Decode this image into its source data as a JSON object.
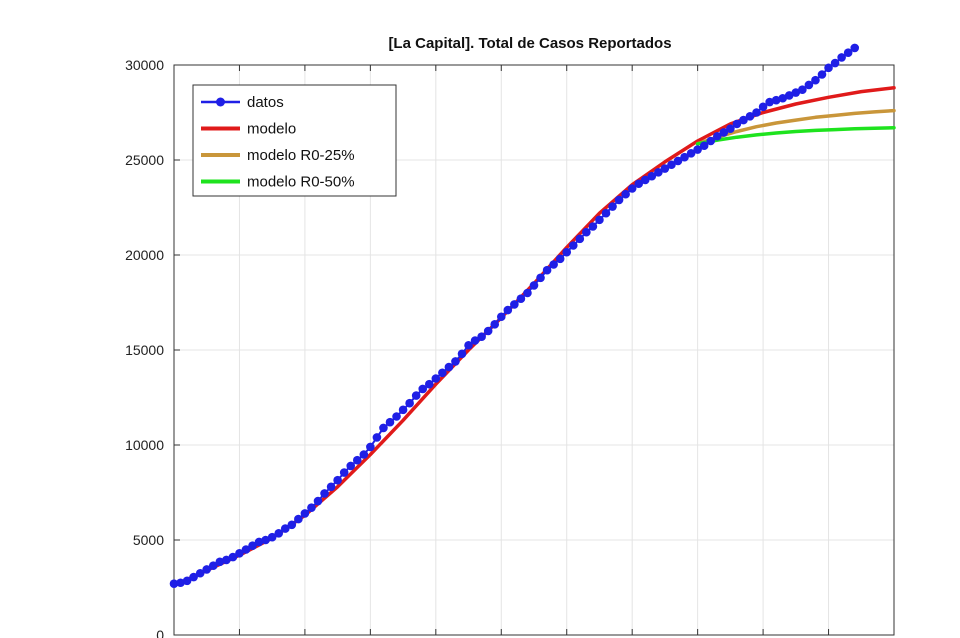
{
  "chart_data": {
    "type": "line",
    "title": "[La Capital]. Total de Casos Reportados",
    "xlabel": "",
    "ylabel": "",
    "xlim": [
      0,
      110
    ],
    "ylim": [
      0,
      30000
    ],
    "yticks": [
      0,
      5000,
      10000,
      15000,
      20000,
      25000,
      30000
    ],
    "ytick_labels": [
      "0",
      "5000",
      "10000",
      "15000",
      "20000",
      "25000",
      "30000"
    ],
    "xtick_positions": [
      10,
      20,
      30,
      40,
      50,
      60,
      70,
      80,
      90,
      100,
      110
    ],
    "grid": true,
    "legend_position": "top-left",
    "colors": {
      "datos": "#1f1fe6",
      "modelo": "#e01a1a",
      "modelo_r0_25": "#c9963a",
      "modelo_r0_50": "#1ee31e"
    },
    "series": [
      {
        "name": "datos",
        "key": "datos",
        "style": "line-marker",
        "x": [
          0,
          1,
          2,
          3,
          4,
          5,
          6,
          7,
          8,
          9,
          10,
          11,
          12,
          13,
          14,
          15,
          16,
          17,
          18,
          19,
          20,
          21,
          22,
          23,
          24,
          25,
          26,
          27,
          28,
          29,
          30,
          31,
          32,
          33,
          34,
          35,
          36,
          37,
          38,
          39,
          40,
          41,
          42,
          43,
          44,
          45,
          46,
          47,
          48,
          49,
          50,
          51,
          52,
          53,
          54,
          55,
          56,
          57,
          58,
          59,
          60,
          61,
          62,
          63,
          64,
          65,
          66,
          67,
          68,
          69,
          70,
          71,
          72,
          73,
          74,
          75,
          76,
          77,
          78,
          79,
          80,
          81,
          82,
          83,
          84,
          85,
          86,
          87,
          88,
          89,
          90,
          91,
          92,
          93,
          94,
          95,
          96,
          97,
          98,
          99,
          100,
          101,
          102,
          103,
          104
        ],
        "values": [
          2700,
          2750,
          2850,
          3050,
          3250,
          3450,
          3650,
          3850,
          3950,
          4100,
          4300,
          4500,
          4700,
          4900,
          5000,
          5150,
          5350,
          5600,
          5800,
          6100,
          6400,
          6700,
          7050,
          7450,
          7800,
          8150,
          8550,
          8900,
          9200,
          9500,
          9900,
          10400,
          10900,
          11200,
          11500,
          11850,
          12200,
          12600,
          12950,
          13200,
          13500,
          13800,
          14100,
          14400,
          14800,
          15250,
          15500,
          15700,
          16000,
          16350,
          16750,
          17100,
          17400,
          17700,
          18000,
          18400,
          18800,
          19200,
          19500,
          19800,
          20150,
          20500,
          20850,
          21200,
          21500,
          21850,
          22200,
          22550,
          22900,
          23200,
          23500,
          23750,
          23950,
          24150,
          24350,
          24550,
          24750,
          24950,
          25150,
          25350,
          25550,
          25750,
          26000,
          26250,
          26450,
          26650,
          26900,
          27100,
          27300,
          27500,
          27800,
          28050,
          28150,
          28250,
          28400,
          28550,
          28700,
          28950,
          29200,
          29500,
          29850,
          30100,
          30400,
          30650,
          30900
        ]
      },
      {
        "name": "modelo",
        "key": "modelo",
        "style": "line",
        "x": [
          0,
          5,
          10,
          15,
          20,
          25,
          30,
          35,
          40,
          45,
          50,
          55,
          60,
          65,
          70,
          75,
          80,
          85,
          90,
          95,
          100,
          105,
          110
        ],
        "values": [
          2600,
          3400,
          4200,
          5100,
          6300,
          7800,
          9500,
          11300,
          13200,
          15000,
          16700,
          18500,
          20400,
          22200,
          23700,
          24900,
          26000,
          26900,
          27500,
          27950,
          28300,
          28600,
          28800
        ]
      },
      {
        "name": "modelo R0-25%",
        "key": "modelo_r0_25",
        "style": "line",
        "x": [
          80,
          83,
          86,
          89,
          92,
          95,
          98,
          101,
          104,
          107,
          110
        ],
        "values": [
          25850,
          26200,
          26500,
          26750,
          26950,
          27100,
          27250,
          27350,
          27450,
          27530,
          27600
        ]
      },
      {
        "name": "modelo R0-50%",
        "key": "modelo_r0_50",
        "style": "line",
        "x": [
          80,
          83,
          86,
          89,
          92,
          95,
          98,
          101,
          104,
          107,
          110
        ],
        "values": [
          25850,
          26050,
          26200,
          26320,
          26420,
          26500,
          26560,
          26600,
          26640,
          26670,
          26700
        ]
      }
    ]
  }
}
